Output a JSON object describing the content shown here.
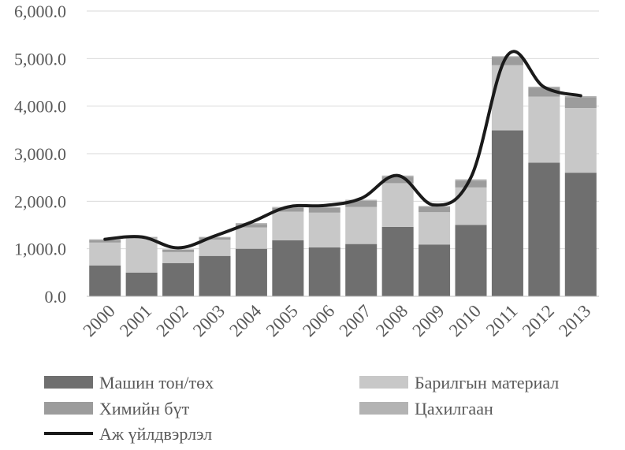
{
  "chart_data": {
    "type": "bar",
    "stacked": true,
    "categories": [
      "2000",
      "2001",
      "2002",
      "2003",
      "2004",
      "2005",
      "2006",
      "2007",
      "2008",
      "2009",
      "2010",
      "2011",
      "2012",
      "2013"
    ],
    "series": [
      {
        "name": "Машин тон/төх",
        "kind": "bar",
        "color": "#6f6f6f",
        "values": [
          650,
          500,
          700,
          850,
          1000,
          1180,
          1030,
          1100,
          1460,
          1090,
          1500,
          3490,
          2810,
          2600
        ]
      },
      {
        "name": "Барилгын материал",
        "kind": "bar",
        "color": "#c8c8c8",
        "values": [
          480,
          720,
          230,
          340,
          450,
          600,
          730,
          780,
          920,
          680,
          790,
          1370,
          1390,
          1360
        ]
      },
      {
        "name": "Химийн бүт",
        "kind": "bar",
        "color": "#9c9c9c",
        "values": [
          50,
          20,
          50,
          50,
          70,
          80,
          100,
          130,
          130,
          110,
          140,
          170,
          190,
          230
        ]
      },
      {
        "name": "Цахилгаан",
        "kind": "bar",
        "color": "#b3b3b3",
        "values": [
          20,
          10,
          10,
          10,
          20,
          20,
          20,
          20,
          30,
          20,
          30,
          20,
          20,
          20
        ]
      },
      {
        "name": "Аж үйлдвэрлэл",
        "kind": "line",
        "color": "#1a1a1a",
        "values": [
          1200,
          1250,
          1020,
          1270,
          1560,
          1880,
          1910,
          2060,
          2540,
          1920,
          2500,
          5070,
          4400,
          4220
        ]
      }
    ],
    "y_ticks": [
      "0.0",
      "1,000.0",
      "2,000.0",
      "3,000.0",
      "4,000.0",
      "5,000.0",
      "6,000.0"
    ],
    "ylim": [
      0,
      6000
    ],
    "grid": "horizontal",
    "legend_position": "bottom",
    "legend": [
      {
        "label": "Машин тон/төх",
        "kind": "bar",
        "color": "#6f6f6f"
      },
      {
        "label": "Барилгын материал",
        "kind": "bar",
        "color": "#c8c8c8"
      },
      {
        "label": "Химийн бүт",
        "kind": "bar",
        "color": "#9c9c9c"
      },
      {
        "label": "Цахилгаан",
        "kind": "bar",
        "color": "#b3b3b3"
      },
      {
        "label": "Аж үйлдвэрлэл",
        "kind": "line",
        "color": "#1a1a1a"
      }
    ]
  }
}
